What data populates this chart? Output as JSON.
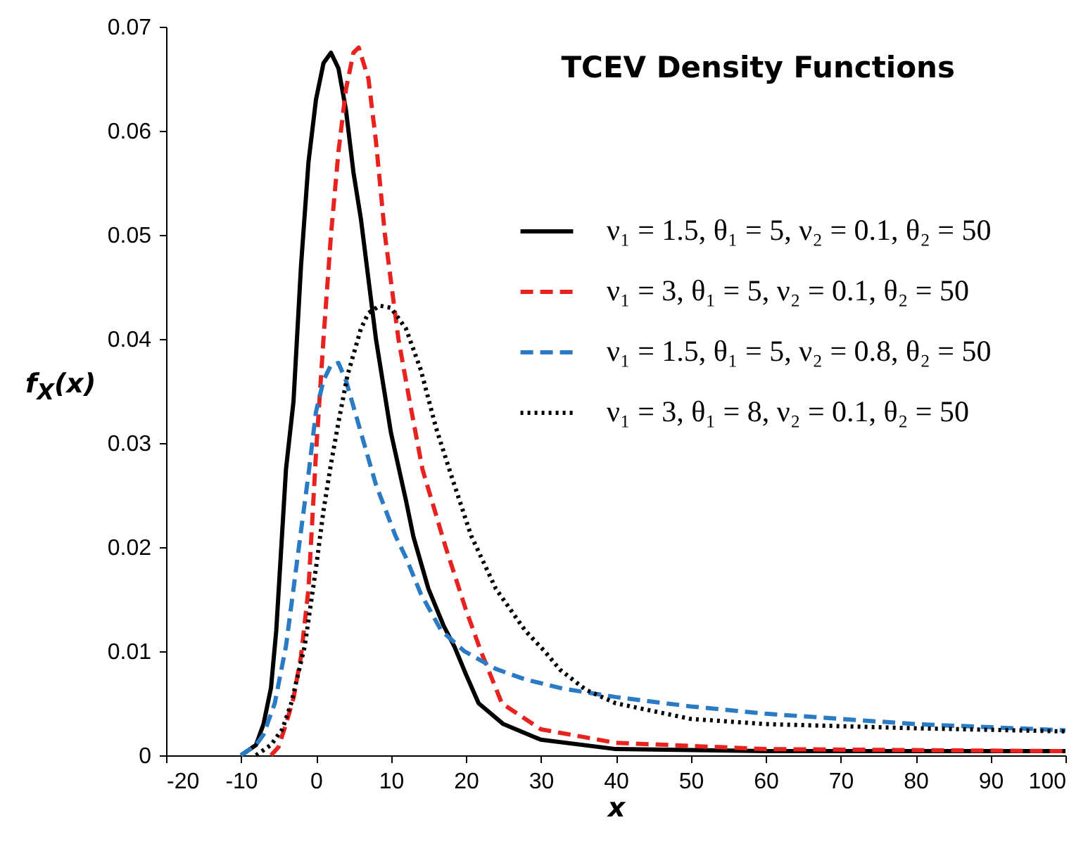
{
  "chart_data": {
    "type": "line",
    "title": "TCEV Density Functions",
    "xlabel": "x",
    "ylabel": "f$_{X}$(x)",
    "xlim": [
      -20,
      100
    ],
    "xticks": [
      -20,
      -10,
      0,
      10,
      20,
      30,
      40,
      50,
      60,
      70,
      80,
      90,
      100
    ],
    "ylim": [
      0,
      0.07
    ],
    "yticks": [
      0,
      0.01,
      0.02,
      0.03,
      0.04,
      0.05,
      0.06,
      0.07
    ],
    "grid": false,
    "legend": "top right",
    "series": [
      {
        "name": "ν₁ = 1.5, θ₁ = 5, ν₂ = 0.1, θ₂ = 50",
        "color": "#000000",
        "line_style": "solid",
        "x": [
          -10,
          -8,
          -7,
          -6,
          -5.3,
          -4,
          -3,
          -2,
          -1,
          0,
          1,
          2,
          3,
          4,
          5,
          6,
          8,
          10,
          12,
          13,
          15,
          17,
          18.5,
          20,
          21.7,
          25,
          30,
          40,
          60,
          100
        ],
        "values": [
          0,
          0.001,
          0.003,
          0.0065,
          0.012,
          0.0275,
          0.034,
          0.047,
          0.057,
          0.063,
          0.0665,
          0.0675,
          0.066,
          0.062,
          0.056,
          0.0515,
          0.04,
          0.031,
          0.0245,
          0.021,
          0.016,
          0.0125,
          0.0104,
          0.0078,
          0.005,
          0.003,
          0.0015,
          0.0006,
          0.0004,
          0.0004
        ]
      },
      {
        "name": "ν₁ = 3, θ₁ = 5, ν₂ = 0.1, θ₂ = 50",
        "color": "#e8231f",
        "line_style": "dashed",
        "x": [
          -6,
          -5,
          -4,
          -3,
          -2,
          -1,
          0,
          1,
          2,
          3,
          4,
          5,
          5.7,
          7,
          8,
          9.2,
          11,
          12.5,
          14.2,
          17.3,
          20,
          22,
          24.8,
          30,
          40,
          60,
          100
        ],
        "values": [
          0,
          0.0008,
          0.003,
          0.0055,
          0.0095,
          0.016,
          0.029,
          0.04,
          0.05,
          0.058,
          0.064,
          0.0675,
          0.068,
          0.065,
          0.059,
          0.05,
          0.04,
          0.034,
          0.0275,
          0.02,
          0.014,
          0.01,
          0.005,
          0.0025,
          0.0012,
          0.0006,
          0.0004
        ]
      },
      {
        "name": "ν₁ = 1.5, θ₁ = 5, ν₂ = 0.8, θ₂ = 50",
        "color": "#2a7bc4",
        "line_style": "dashed",
        "x": [
          -10,
          -8,
          -7,
          -5.5,
          -4,
          -3,
          -2.1,
          -1,
          0,
          1,
          2,
          3,
          4,
          5,
          6,
          8,
          10.6,
          12,
          14,
          16.7,
          19.8,
          24,
          27.9,
          33,
          40,
          50,
          60,
          70,
          80,
          90,
          100
        ],
        "values": [
          0,
          0.001,
          0.002,
          0.005,
          0.0105,
          0.016,
          0.021,
          0.027,
          0.033,
          0.036,
          0.0375,
          0.0377,
          0.036,
          0.0335,
          0.031,
          0.026,
          0.0211,
          0.019,
          0.0155,
          0.012,
          0.01,
          0.0083,
          0.0073,
          0.0064,
          0.0056,
          0.0047,
          0.004,
          0.0035,
          0.003,
          0.0027,
          0.0024
        ]
      },
      {
        "name": "ν₁ = 3, θ₁ = 8, ν₂ = 0.1, θ₂ = 50",
        "color": "#000000",
        "line_style": "dotted",
        "x": [
          -8,
          -6,
          -4.5,
          -3.3,
          -1.5,
          0,
          1,
          2,
          3,
          4.2,
          6,
          7,
          8.5,
          10,
          12,
          14,
          16,
          18,
          20.7,
          24,
          27.9,
          30.5,
          32.6,
          36,
          40,
          50,
          60,
          80,
          100
        ],
        "values": [
          0,
          0.001,
          0.0025,
          0.005,
          0.0105,
          0.018,
          0.0235,
          0.028,
          0.032,
          0.0365,
          0.041,
          0.0425,
          0.0432,
          0.043,
          0.041,
          0.037,
          0.0315,
          0.027,
          0.0211,
          0.016,
          0.012,
          0.01,
          0.0082,
          0.0063,
          0.005,
          0.0035,
          0.003,
          0.0026,
          0.0023
        ]
      }
    ]
  }
}
